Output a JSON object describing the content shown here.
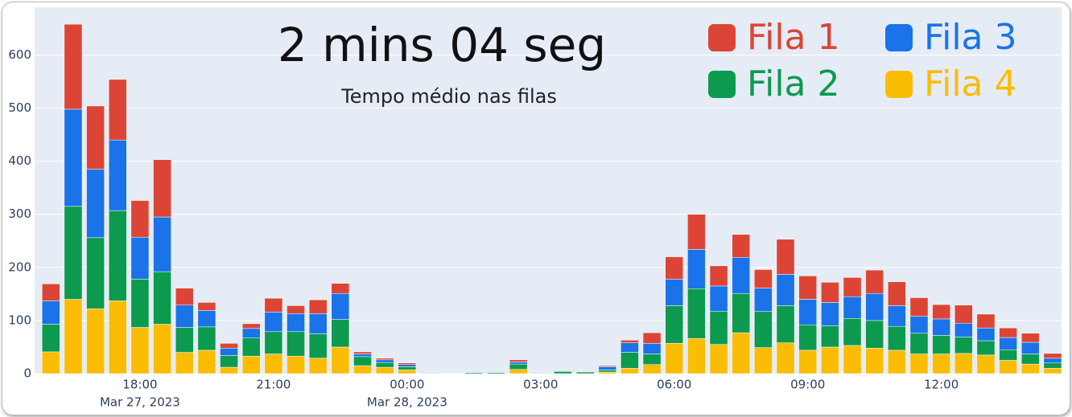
{
  "chart_data": {
    "type": "stacked_bar",
    "title": "2 mins 04 seg",
    "subtitle": "Tempo médio nas filas",
    "x": [
      "2023-03-27 16:00",
      "2023-03-27 16:30",
      "2023-03-27 17:00",
      "2023-03-27 17:30",
      "2023-03-27 18:00",
      "2023-03-27 18:30",
      "2023-03-27 19:00",
      "2023-03-27 19:30",
      "2023-03-27 20:00",
      "2023-03-27 20:30",
      "2023-03-27 21:00",
      "2023-03-27 21:30",
      "2023-03-27 22:00",
      "2023-03-27 22:30",
      "2023-03-27 23:00",
      "2023-03-27 23:30",
      "2023-03-28 00:00",
      "2023-03-28 00:30",
      "2023-03-28 01:00",
      "2023-03-28 01:30",
      "2023-03-28 02:00",
      "2023-03-28 02:30",
      "2023-03-28 03:00",
      "2023-03-28 03:30",
      "2023-03-28 04:00",
      "2023-03-28 04:30",
      "2023-03-28 05:00",
      "2023-03-28 05:30",
      "2023-03-28 06:00",
      "2023-03-28 06:30",
      "2023-03-28 07:00",
      "2023-03-28 07:30",
      "2023-03-28 08:00",
      "2023-03-28 08:30",
      "2023-03-28 09:00",
      "2023-03-28 09:30",
      "2023-03-28 10:00",
      "2023-03-28 10:30",
      "2023-03-28 11:00",
      "2023-03-28 11:30",
      "2023-03-28 12:00",
      "2023-03-28 12:30",
      "2023-03-28 13:00",
      "2023-03-28 13:30",
      "2023-03-28 14:00",
      "2023-03-28 14:30"
    ],
    "series": [
      {
        "name": "Fila 4",
        "color": "#fbbc04",
        "values": [
          41,
          140,
          122,
          137,
          87,
          93,
          40,
          44,
          12,
          33,
          37,
          33,
          29,
          50,
          15,
          12,
          7,
          0,
          0,
          0,
          0,
          8,
          0,
          0,
          0,
          3,
          10,
          17,
          57,
          66,
          55,
          77,
          49,
          58,
          44,
          50,
          53,
          48,
          44,
          37,
          37,
          38,
          35,
          25,
          18,
          10
        ]
      },
      {
        "name": "Fila 2",
        "color": "#0c9a4f",
        "values": [
          52,
          175,
          134,
          170,
          91,
          99,
          47,
          44,
          22,
          34,
          42,
          46,
          46,
          52,
          17,
          9,
          6,
          1,
          0,
          2,
          2,
          10,
          1,
          4,
          3,
          4,
          30,
          20,
          71,
          94,
          62,
          74,
          68,
          70,
          48,
          40,
          51,
          52,
          45,
          39,
          35,
          31,
          27,
          20,
          19,
          10
        ]
      },
      {
        "name": "Fila 3",
        "color": "#1a73e8",
        "values": [
          44,
          183,
          129,
          133,
          79,
          103,
          42,
          31,
          14,
          18,
          37,
          34,
          38,
          49,
          5,
          5,
          4,
          0,
          0,
          0,
          0,
          4,
          0,
          0,
          0,
          6,
          18,
          20,
          50,
          74,
          48,
          68,
          44,
          59,
          48,
          44,
          41,
          51,
          39,
          32,
          31,
          26,
          24,
          23,
          22,
          9
        ]
      },
      {
        "name": "Fila 1",
        "color": "#dc4535",
        "values": [
          32,
          160,
          119,
          114,
          69,
          108,
          32,
          15,
          9,
          9,
          26,
          15,
          26,
          19,
          4,
          3,
          3,
          0,
          0,
          0,
          0,
          4,
          0,
          0,
          0,
          2,
          5,
          20,
          42,
          66,
          38,
          43,
          35,
          66,
          44,
          38,
          36,
          44,
          45,
          35,
          27,
          34,
          26,
          18,
          17,
          9
        ]
      }
    ],
    "xlim": [
      "2023-03-27 15:38",
      "2023-03-28 14:42"
    ],
    "xticks": [
      {
        "value": "2023-03-27 18:00",
        "label": "18:00"
      },
      {
        "value": "2023-03-27 21:00",
        "label": "21:00"
      },
      {
        "value": "2023-03-28 00:00",
        "label": "00:00"
      },
      {
        "value": "2023-03-28 03:00",
        "label": "03:00"
      },
      {
        "value": "2023-03-28 06:00",
        "label": "06:00"
      },
      {
        "value": "2023-03-28 09:00",
        "label": "09:00"
      },
      {
        "value": "2023-03-28 12:00",
        "label": "12:00"
      }
    ],
    "xtick_dates": [
      {
        "value": "2023-03-27 18:00",
        "label": "Mar 27, 2023"
      },
      {
        "value": "2023-03-28 00:00",
        "label": "Mar 28, 2023"
      }
    ],
    "ylim": [
      0,
      690
    ],
    "yticks": [
      0,
      100,
      200,
      300,
      400,
      500,
      600
    ],
    "grid": true
  }
}
